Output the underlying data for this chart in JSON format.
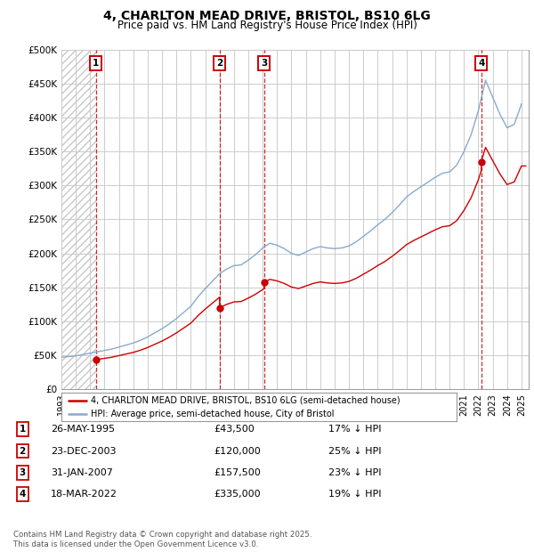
{
  "title": "4, CHARLTON MEAD DRIVE, BRISTOL, BS10 6LG",
  "subtitle": "Price paid vs. HM Land Registry's House Price Index (HPI)",
  "legend_label_red": "4, CHARLTON MEAD DRIVE, BRISTOL, BS10 6LG (semi-detached house)",
  "legend_label_blue": "HPI: Average price, semi-detached house, City of Bristol",
  "footer": "Contains HM Land Registry data © Crown copyright and database right 2025.\nThis data is licensed under the Open Government Licence v3.0.",
  "sales": [
    {
      "num": 1,
      "date_label": "26-MAY-1995",
      "price": 43500,
      "pct": "17% ↓ HPI",
      "year_x": 1995.4
    },
    {
      "num": 2,
      "date_label": "23-DEC-2003",
      "price": 120000,
      "pct": "25% ↓ HPI",
      "year_x": 2004.0
    },
    {
      "num": 3,
      "date_label": "31-JAN-2007",
      "price": 157500,
      "pct": "23% ↓ HPI",
      "year_x": 2007.1
    },
    {
      "num": 4,
      "date_label": "18-MAR-2022",
      "price": 335000,
      "pct": "19% ↓ HPI",
      "year_x": 2022.2
    }
  ],
  "ylim": [
    0,
    500000
  ],
  "xlim": [
    1993.0,
    2025.5
  ],
  "yticks": [
    0,
    50000,
    100000,
    150000,
    200000,
    250000,
    300000,
    350000,
    400000,
    450000,
    500000
  ],
  "ytick_labels": [
    "£0",
    "£50K",
    "£100K",
    "£150K",
    "£200K",
    "£250K",
    "£300K",
    "£350K",
    "£400K",
    "£450K",
    "£500K"
  ],
  "red_color": "#cc0000",
  "blue_color": "#88aacc",
  "background_color": "#ffffff",
  "grid_color": "#cccccc",
  "hpi_years": [
    1993.0,
    1993.5,
    1994.0,
    1994.5,
    1995.0,
    1995.5,
    1996.0,
    1996.5,
    1997.0,
    1997.5,
    1998.0,
    1998.5,
    1999.0,
    1999.5,
    2000.0,
    2000.5,
    2001.0,
    2001.5,
    2002.0,
    2002.5,
    2003.0,
    2003.5,
    2004.0,
    2004.5,
    2005.0,
    2005.5,
    2006.0,
    2006.5,
    2007.0,
    2007.5,
    2008.0,
    2008.5,
    2009.0,
    2009.5,
    2010.0,
    2010.5,
    2011.0,
    2011.5,
    2012.0,
    2012.5,
    2013.0,
    2013.5,
    2014.0,
    2014.5,
    2015.0,
    2015.5,
    2016.0,
    2016.5,
    2017.0,
    2017.5,
    2018.0,
    2018.5,
    2019.0,
    2019.5,
    2020.0,
    2020.5,
    2021.0,
    2021.5,
    2022.0,
    2022.5,
    2023.0,
    2023.5,
    2024.0,
    2024.5,
    2025.0
  ],
  "hpi_values": [
    47000,
    48000,
    49000,
    51000,
    53000,
    55000,
    57000,
    59000,
    62000,
    65000,
    68000,
    72000,
    77000,
    83000,
    89000,
    96000,
    104000,
    113000,
    122000,
    136000,
    148000,
    159000,
    170000,
    177000,
    182000,
    183000,
    190000,
    198000,
    208000,
    215000,
    212000,
    207000,
    200000,
    197000,
    202000,
    207000,
    210000,
    208000,
    207000,
    208000,
    211000,
    217000,
    225000,
    233000,
    242000,
    250000,
    260000,
    271000,
    283000,
    291000,
    298000,
    305000,
    312000,
    318000,
    320000,
    330000,
    350000,
    375000,
    410000,
    455000,
    430000,
    405000,
    385000,
    390000,
    420000
  ]
}
